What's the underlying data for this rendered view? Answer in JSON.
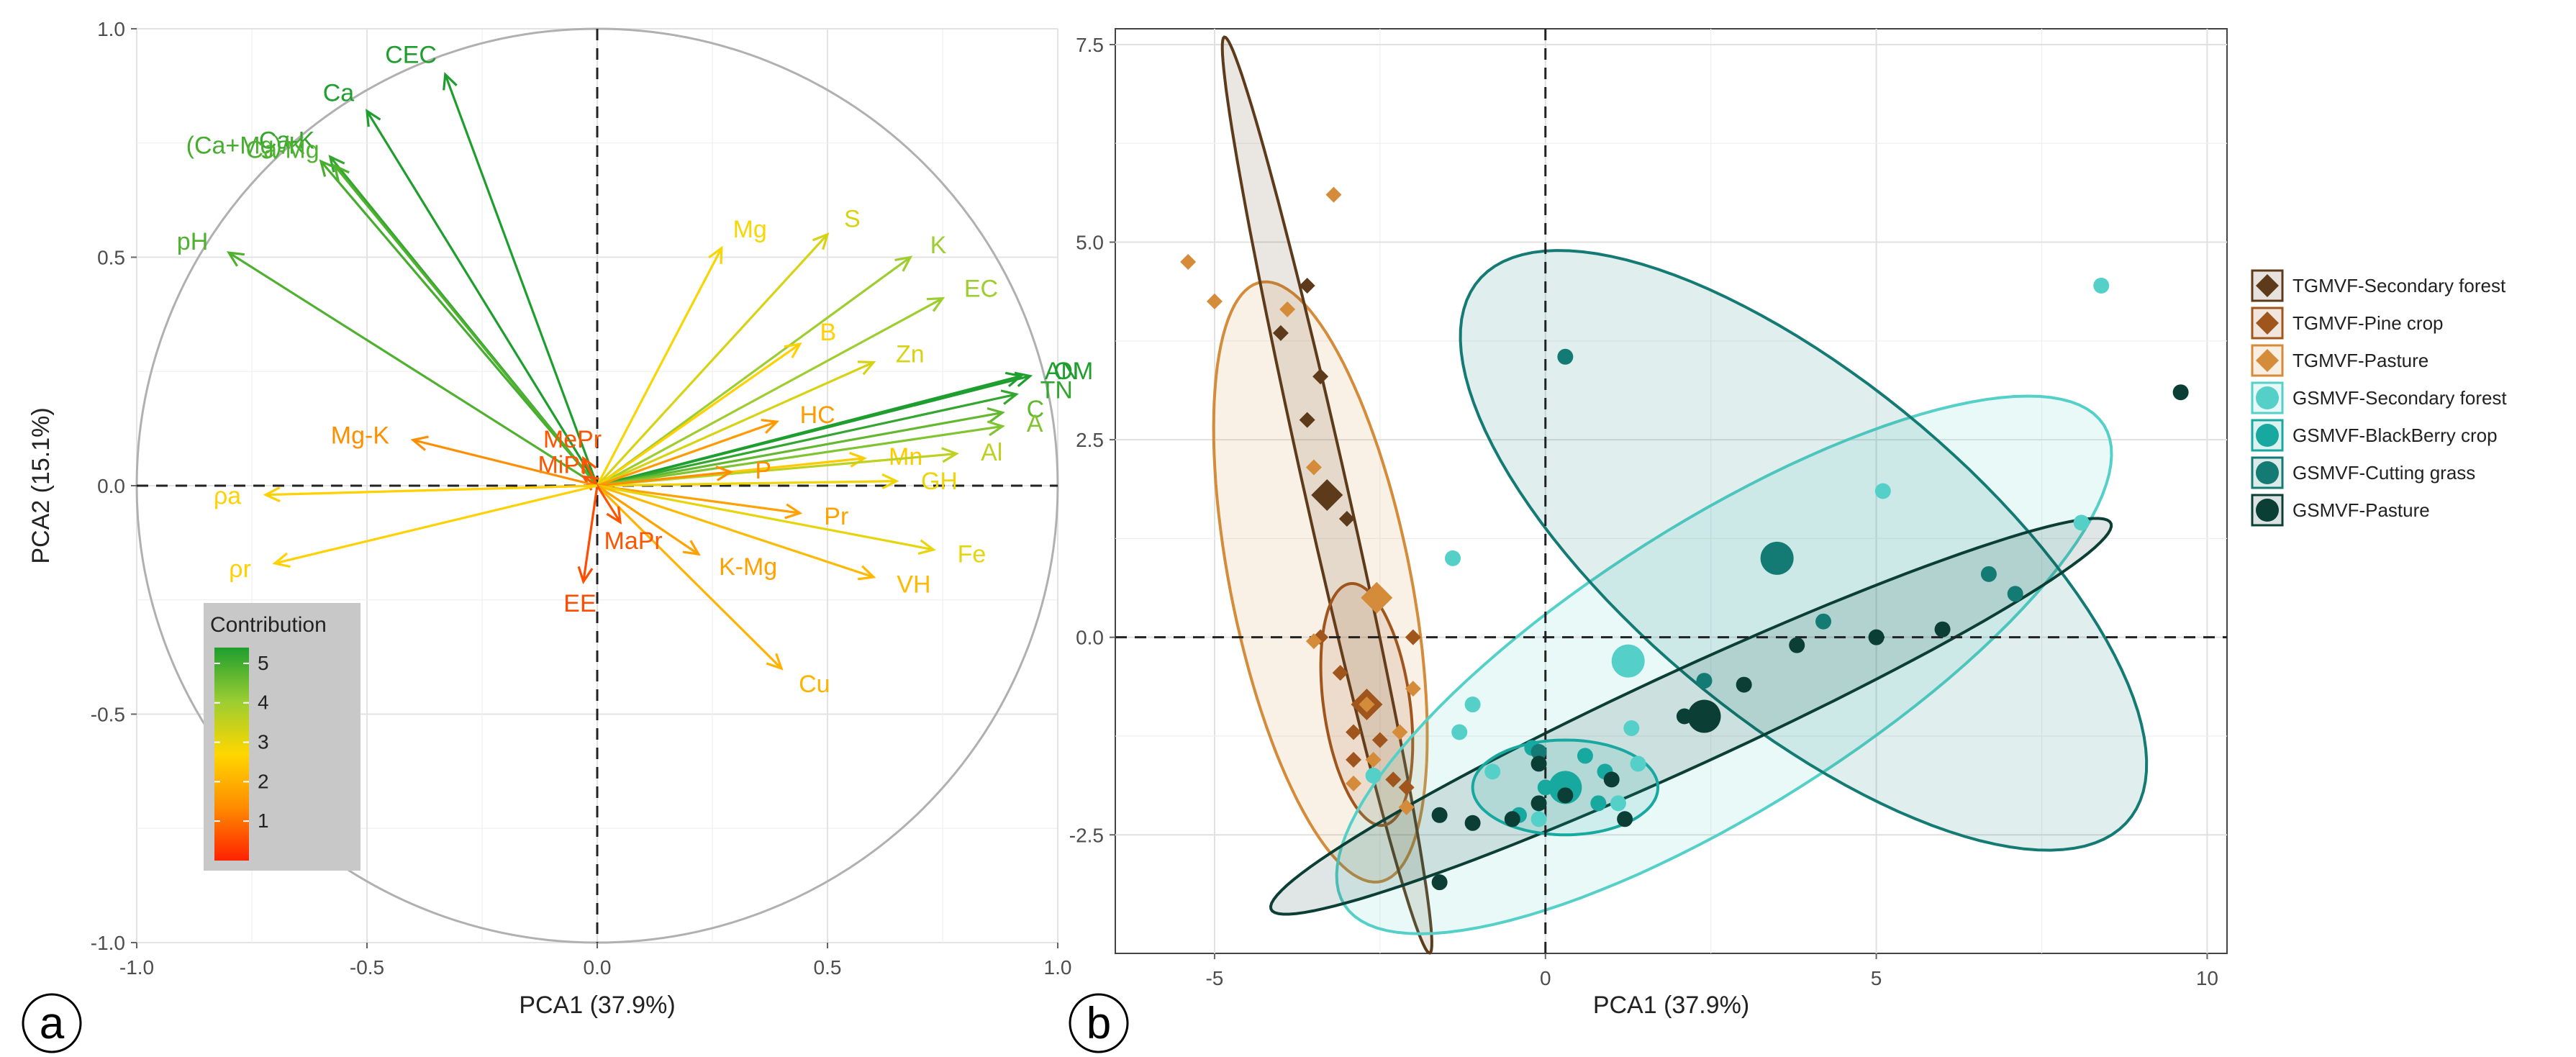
{
  "panel_labels": {
    "a": "a",
    "b": "b"
  },
  "chart_data": [
    {
      "type": "biplot",
      "panel": "a",
      "title": "",
      "xlabel": "PCA1 (37.9%)",
      "ylabel": "PCA2 (15.1%)",
      "xlim": [
        -1.0,
        1.0
      ],
      "ylim": [
        -1.0,
        1.0
      ],
      "xticks": [
        "-1.0",
        "-0.5",
        "0.0",
        "0.5",
        "1.0"
      ],
      "yticks": [
        "-1.0",
        "-0.5",
        "0.0",
        "0.5",
        "1.0"
      ],
      "grid": true,
      "correlation_circle": true,
      "legend": {
        "title": "Contribution",
        "ticks": [
          "1",
          "2",
          "3",
          "4",
          "5"
        ],
        "gradient": [
          "#FF2200",
          "#FF8C00",
          "#FFD700",
          "#9ACD32",
          "#1E9E2E"
        ]
      },
      "vectors": [
        {
          "name": "CEC",
          "x": -0.33,
          "y": 0.9,
          "contrib": 5.0
        },
        {
          "name": "Ca",
          "x": -0.5,
          "y": 0.82,
          "contrib": 5.0
        },
        {
          "name": "Ca-K",
          "x": -0.58,
          "y": 0.72,
          "contrib": 4.8
        },
        {
          "name": "(Ca+Mg)/K",
          "x": -0.6,
          "y": 0.71,
          "contrib": 4.6
        },
        {
          "name": "Ca-Mg",
          "x": -0.57,
          "y": 0.7,
          "contrib": 4.5
        },
        {
          "name": "pH",
          "x": -0.8,
          "y": 0.51,
          "contrib": 4.5
        },
        {
          "name": "Mg",
          "x": 0.27,
          "y": 0.52,
          "contrib": 2.6
        },
        {
          "name": "S",
          "x": 0.5,
          "y": 0.55,
          "contrib": 3.0
        },
        {
          "name": "K",
          "x": 0.68,
          "y": 0.5,
          "contrib": 3.7
        },
        {
          "name": "EC",
          "x": 0.75,
          "y": 0.41,
          "contrib": 3.7
        },
        {
          "name": "B",
          "x": 0.44,
          "y": 0.31,
          "contrib": 2.4
        },
        {
          "name": "Zn",
          "x": 0.6,
          "y": 0.27,
          "contrib": 3.0
        },
        {
          "name": "AN",
          "x": 0.92,
          "y": 0.24,
          "contrib": 5.0
        },
        {
          "name": "OM",
          "x": 0.94,
          "y": 0.24,
          "contrib": 5.0
        },
        {
          "name": "TN",
          "x": 0.91,
          "y": 0.2,
          "contrib": 4.8
        },
        {
          "name": "C",
          "x": 0.88,
          "y": 0.16,
          "contrib": 4.3
        },
        {
          "name": "A",
          "x": 0.88,
          "y": 0.13,
          "contrib": 4.0
        },
        {
          "name": "HC",
          "x": 0.39,
          "y": 0.14,
          "contrib": 1.5
        },
        {
          "name": "Mn",
          "x": 0.58,
          "y": 0.06,
          "contrib": 2.3
        },
        {
          "name": "Al",
          "x": 0.78,
          "y": 0.07,
          "contrib": 3.3
        },
        {
          "name": "GH",
          "x": 0.65,
          "y": 0.01,
          "contrib": 2.7
        },
        {
          "name": "P",
          "x": 0.29,
          "y": 0.03,
          "contrib": 1.3
        },
        {
          "name": "Pr",
          "x": 0.44,
          "y": -0.06,
          "contrib": 1.6
        },
        {
          "name": "Fe",
          "x": 0.73,
          "y": -0.14,
          "contrib": 2.8
        },
        {
          "name": "VH",
          "x": 0.6,
          "y": -0.2,
          "contrib": 2.0
        },
        {
          "name": "K-Mg",
          "x": 0.22,
          "y": -0.15,
          "contrib": 1.6
        },
        {
          "name": "Cu",
          "x": 0.4,
          "y": -0.4,
          "contrib": 1.9
        },
        {
          "name": "MePr",
          "x": -0.03,
          "y": 0.06,
          "contrib": 0.6
        },
        {
          "name": "MiPr",
          "x": -0.03,
          "y": 0.02,
          "contrib": 0.6
        },
        {
          "name": "MaPr",
          "x": 0.05,
          "y": -0.08,
          "contrib": 0.6
        },
        {
          "name": "EE",
          "x": -0.03,
          "y": -0.21,
          "contrib": 0.5
        },
        {
          "name": "Mg-K",
          "x": -0.4,
          "y": 0.1,
          "contrib": 1.3
        },
        {
          "name": "ρa",
          "x": -0.72,
          "y": -0.02,
          "contrib": 2.4
        },
        {
          "name": "ρr",
          "x": -0.7,
          "y": -0.17,
          "contrib": 2.4
        }
      ]
    },
    {
      "type": "scatter",
      "panel": "b",
      "title": "",
      "xlabel": "PCA1 (37.9%)",
      "ylabel": "",
      "xlim": [
        -6.5,
        10.3
      ],
      "ylim": [
        -4.0,
        7.7
      ],
      "xticks": [
        "-5",
        "0",
        "5",
        "10"
      ],
      "yticks": [
        "-2.5",
        "0.0",
        "2.5",
        "5.0",
        "7.5"
      ],
      "grid": true,
      "legend_position": "right",
      "series": [
        {
          "name": "TGMVF-Secondary forest",
          "marker": "diamond",
          "color": "#5C3A1A",
          "centroid": [
            -3.3,
            1.8
          ],
          "ellipse": {
            "cx": -3.3,
            "cy": 1.8,
            "rx": 6.0,
            "ry": 0.32,
            "angle": -75.0
          },
          "points": [
            [
              -3.6,
              4.45
            ],
            [
              -4.0,
              3.85
            ],
            [
              -3.4,
              3.3
            ],
            [
              -3.6,
              2.75
            ],
            [
              -3.3,
              1.85
            ],
            [
              -3.0,
              1.5
            ]
          ]
        },
        {
          "name": "TGMVF-Pine crop",
          "marker": "diamond",
          "color": "#A0551C",
          "centroid": [
            -2.7,
            -0.85
          ],
          "ellipse": {
            "cx": -2.7,
            "cy": -0.85,
            "rx": 1.55,
            "ry": 0.65,
            "angle": -80.0
          },
          "points": [
            [
              -3.4,
              0.0
            ],
            [
              -3.1,
              -0.45
            ],
            [
              -2.9,
              -1.2
            ],
            [
              -2.5,
              -1.3
            ],
            [
              -2.9,
              -1.55
            ],
            [
              -2.3,
              -1.8
            ],
            [
              -2.1,
              -1.9
            ],
            [
              -2.0,
              0.0
            ]
          ]
        },
        {
          "name": "TGMVF-Pasture",
          "marker": "diamond",
          "color": "#D48B3A",
          "centroid": [
            -2.55,
            0.5
          ],
          "ellipse": {
            "cx": -3.4,
            "cy": 0.7,
            "rx": 3.9,
            "ry": 1.35,
            "angle": -76.0
          },
          "points": [
            [
              -5.4,
              4.75
            ],
            [
              -5.0,
              4.25
            ],
            [
              -3.9,
              4.15
            ],
            [
              -3.2,
              5.6
            ],
            [
              -3.5,
              2.15
            ],
            [
              -3.5,
              -0.05
            ],
            [
              -2.7,
              -0.85
            ],
            [
              -2.9,
              -1.85
            ],
            [
              -2.6,
              -1.55
            ],
            [
              -2.2,
              -1.2
            ],
            [
              -2.1,
              -2.15
            ],
            [
              -2.0,
              -0.65
            ]
          ]
        },
        {
          "name": "GSMVF-Secondary forest",
          "marker": "circle",
          "color": "#55D0C8",
          "centroid": [
            1.25,
            -0.3
          ],
          "ellipse": {
            "cx": 2.7,
            "cy": -0.35,
            "rx": 6.5,
            "ry": 1.9,
            "angle": 27.0
          },
          "points": [
            [
              8.4,
              4.45
            ],
            [
              5.1,
              1.85
            ],
            [
              -1.4,
              1.0
            ],
            [
              -1.1,
              -0.85
            ],
            [
              -1.3,
              -1.2
            ],
            [
              -0.8,
              -1.7
            ],
            [
              1.3,
              -1.15
            ],
            [
              1.4,
              -1.6
            ],
            [
              1.1,
              -2.1
            ],
            [
              -0.1,
              -2.3
            ],
            [
              -2.6,
              -1.75
            ],
            [
              8.1,
              1.45
            ]
          ]
        },
        {
          "name": "GSMVF-BlackBerry crop",
          "marker": "circle",
          "color": "#17A8A0",
          "centroid": [
            0.3,
            -1.9
          ],
          "ellipse": {
            "cx": 0.3,
            "cy": -1.9,
            "rx": 1.4,
            "ry": 0.6,
            "angle": 0.0
          },
          "points": [
            [
              -0.2,
              -1.4
            ],
            [
              0.6,
              -1.5
            ],
            [
              0.8,
              -2.1
            ],
            [
              -0.4,
              -2.25
            ],
            [
              0.0,
              -1.9
            ],
            [
              0.9,
              -1.7
            ]
          ]
        },
        {
          "name": "GSMVF-Cutting grass",
          "marker": "circle",
          "color": "#137A74",
          "centroid": [
            3.5,
            1.0
          ],
          "ellipse": {
            "cx": 3.9,
            "cy": 1.1,
            "rx": 6.0,
            "ry": 2.3,
            "angle": -33.0
          },
          "points": [
            [
              0.3,
              3.55
            ],
            [
              6.7,
              0.8
            ],
            [
              7.1,
              0.55
            ],
            [
              4.2,
              0.2
            ],
            [
              2.4,
              -0.55
            ],
            [
              -0.1,
              -1.45
            ]
          ]
        },
        {
          "name": "GSMVF-Pasture",
          "marker": "circle",
          "color": "#0B3F36",
          "centroid": [
            2.4,
            -1.0
          ],
          "ellipse": {
            "cx": 2.2,
            "cy": -1.0,
            "rx": 6.8,
            "ry": 0.62,
            "angle": 21.0
          },
          "points": [
            [
              9.6,
              3.1
            ],
            [
              6.0,
              0.1
            ],
            [
              5.0,
              0.0
            ],
            [
              3.8,
              -0.1
            ],
            [
              3.0,
              -0.6
            ],
            [
              1.0,
              -1.8
            ],
            [
              0.3,
              -2.0
            ],
            [
              -0.1,
              -2.1
            ],
            [
              -0.5,
              -2.3
            ],
            [
              -1.1,
              -2.35
            ],
            [
              1.2,
              -2.3
            ],
            [
              -1.6,
              -2.25
            ],
            [
              -1.6,
              -3.1
            ],
            [
              2.1,
              -1.0
            ],
            [
              -0.1,
              -1.6
            ]
          ]
        }
      ]
    }
  ]
}
